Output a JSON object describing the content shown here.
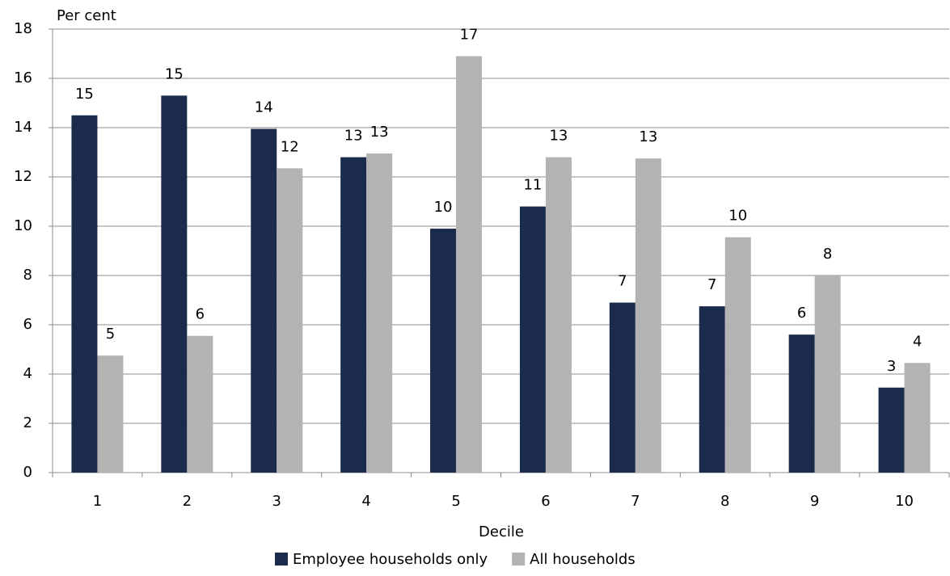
{
  "chart_data": {
    "type": "bar",
    "y_label": "Per cent",
    "x_label": "Decile",
    "categories": [
      "1",
      "2",
      "3",
      "4",
      "5",
      "6",
      "7",
      "8",
      "9",
      "10"
    ],
    "series": [
      {
        "name": "Employee households only",
        "color": "#1b2b4b",
        "values": [
          14.5,
          15.3,
          13.95,
          12.8,
          9.9,
          10.8,
          6.9,
          6.75,
          5.6,
          3.45
        ],
        "value_labels": [
          "15",
          "15",
          "14",
          "13",
          "10",
          "11",
          "7",
          "7",
          "6",
          "3"
        ]
      },
      {
        "name": "All households",
        "color": "#b3b3b3",
        "values": [
          4.75,
          5.55,
          12.35,
          12.95,
          16.9,
          12.8,
          12.75,
          9.55,
          8.0,
          4.45
        ],
        "value_labels": [
          "5",
          "6",
          "12",
          "13",
          "17",
          "13",
          "13",
          "10",
          "8",
          "4"
        ]
      }
    ],
    "ylim": [
      0,
      18
    ],
    "yticks": [
      0,
      2,
      4,
      6,
      8,
      10,
      12,
      14,
      16,
      18
    ],
    "grid": true,
    "legend": "bottom"
  }
}
